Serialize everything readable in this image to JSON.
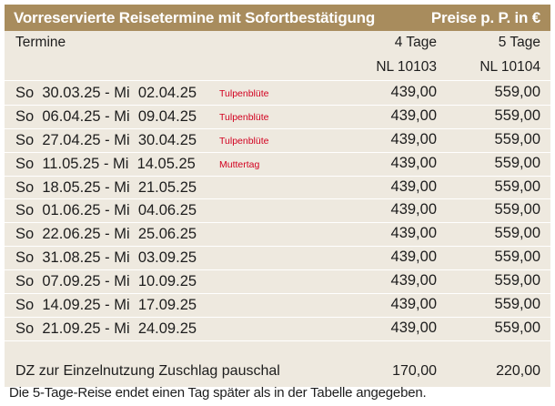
{
  "header": {
    "title": "Vorreservierte Reisetermine mit Sofortbestätigung",
    "price_note": "Preise p. P. in €"
  },
  "table": {
    "col_termine": "Termine",
    "col_4_tage": "4 Tage",
    "col_5_tage": "5 Tage",
    "code_4": "NL 10103",
    "code_5": "NL 10104",
    "rows": [
      {
        "date": "So  30.03.25 - Mi  02.04.25",
        "note": "Tulpenblüte",
        "p4": "439,00",
        "p5": "559,00"
      },
      {
        "date": "So  06.04.25 - Mi  09.04.25",
        "note": "Tulpenblüte",
        "p4": "439,00",
        "p5": "559,00"
      },
      {
        "date": "So  27.04.25 - Mi  30.04.25",
        "note": "Tulpenblüte",
        "p4": "439,00",
        "p5": "559,00"
      },
      {
        "date": "So  11.05.25 - Mi  14.05.25",
        "note": "Muttertag",
        "p4": "439,00",
        "p5": "559,00"
      },
      {
        "date": "So  18.05.25 - Mi  21.05.25",
        "note": "",
        "p4": "439,00",
        "p5": "559,00"
      },
      {
        "date": "So  01.06.25 - Mi  04.06.25",
        "note": "",
        "p4": "439,00",
        "p5": "559,00"
      },
      {
        "date": "So  22.06.25 - Mi  25.06.25",
        "note": "",
        "p4": "439,00",
        "p5": "559,00"
      },
      {
        "date": "So  31.08.25 - Mi  03.09.25",
        "note": "",
        "p4": "439,00",
        "p5": "559,00"
      },
      {
        "date": "So  07.09.25 - Mi  10.09.25",
        "note": "",
        "p4": "439,00",
        "p5": "559,00"
      },
      {
        "date": "So  14.09.25 - Mi  17.09.25",
        "note": "",
        "p4": "439,00",
        "p5": "559,00"
      },
      {
        "date": "So  21.09.25 - Mi  24.09.25",
        "note": "",
        "p4": "439,00",
        "p5": "559,00"
      }
    ],
    "dz": {
      "label": "DZ zur Einzelnutzung Zuschlag pauschal",
      "p4": "170,00",
      "p5": "220,00"
    }
  },
  "footnote": "Die 5-Tage-Reise endet einen Tag später als in der Tabelle angegeben.",
  "colors": {
    "header_bg": "#a88c5d",
    "table_bg": "#eee9df",
    "note_red": "#d2001f"
  }
}
